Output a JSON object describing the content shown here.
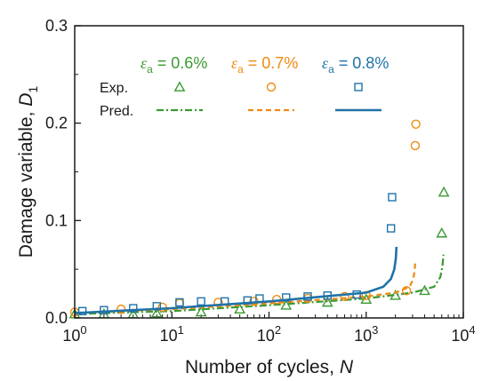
{
  "colors": {
    "green": "#3a9a32",
    "orange": "#ee8a12",
    "blue": "#1f72a8",
    "axis": "#1a1a1a"
  },
  "chart_data": {
    "type": "scatter",
    "x_scale": "log",
    "y_scale": "linear",
    "xlim": [
      1,
      10000
    ],
    "ylim": [
      0,
      0.3
    ],
    "xlabel": {
      "text": "Number of cycles, ",
      "var": "N"
    },
    "ylabel": {
      "text": "Damage variable, ",
      "var": "D",
      "sub": "1"
    },
    "x_ticks": [
      {
        "value": 1,
        "base": "10",
        "exp": "0"
      },
      {
        "value": 10,
        "base": "10",
        "exp": "1"
      },
      {
        "value": 100,
        "base": "10",
        "exp": "2"
      },
      {
        "value": 1000,
        "base": "10",
        "exp": "3"
      },
      {
        "value": 10000,
        "base": "10",
        "exp": "4"
      }
    ],
    "y_ticks": [
      {
        "value": 0,
        "label": "0.0"
      },
      {
        "value": 0.1,
        "label": "0.1"
      },
      {
        "value": 0.2,
        "label": "0.2"
      },
      {
        "value": 0.3,
        "label": "0.3"
      }
    ],
    "legend": {
      "row_labels": {
        "exp": "Exp.",
        "pred": "Pred."
      },
      "header_symbol": "ε",
      "header_sub": "a"
    },
    "series": [
      {
        "name": "ε",
        "name_sub": "a",
        "name_value": " = 0.6%",
        "color_key": "green",
        "marker": "triangle",
        "line_style": "dashdot",
        "exp": [
          {
            "x": 1,
            "y": 0.004
          },
          {
            "x": 2,
            "y": 0.004
          },
          {
            "x": 4,
            "y": 0.004
          },
          {
            "x": 7,
            "y": 0.005
          },
          {
            "x": 20,
            "y": 0.006
          },
          {
            "x": 50,
            "y": 0.009
          },
          {
            "x": 150,
            "y": 0.013
          },
          {
            "x": 400,
            "y": 0.016
          },
          {
            "x": 1000,
            "y": 0.019
          },
          {
            "x": 2000,
            "y": 0.023
          },
          {
            "x": 4000,
            "y": 0.028
          },
          {
            "x": 6000,
            "y": 0.087
          },
          {
            "x": 6300,
            "y": 0.129
          }
        ],
        "pred": [
          {
            "x": 1,
            "y": 0.004
          },
          {
            "x": 10,
            "y": 0.007
          },
          {
            "x": 100,
            "y": 0.013
          },
          {
            "x": 1000,
            "y": 0.02
          },
          {
            "x": 3000,
            "y": 0.026
          },
          {
            "x": 5000,
            "y": 0.032
          },
          {
            "x": 5800,
            "y": 0.042
          },
          {
            "x": 6100,
            "y": 0.053
          },
          {
            "x": 6250,
            "y": 0.065
          }
        ]
      },
      {
        "name": "ε",
        "name_sub": "a",
        "name_value": " = 0.7%",
        "color_key": "orange",
        "marker": "circle",
        "line_style": "dash",
        "exp": [
          {
            "x": 1,
            "y": 0.006
          },
          {
            "x": 3,
            "y": 0.009
          },
          {
            "x": 8,
            "y": 0.011
          },
          {
            "x": 12,
            "y": 0.015
          },
          {
            "x": 30,
            "y": 0.016
          },
          {
            "x": 70,
            "y": 0.017
          },
          {
            "x": 120,
            "y": 0.019
          },
          {
            "x": 250,
            "y": 0.02
          },
          {
            "x": 600,
            "y": 0.022
          },
          {
            "x": 1000,
            "y": 0.023
          },
          {
            "x": 2600,
            "y": 0.028
          },
          {
            "x": 3200,
            "y": 0.177
          },
          {
            "x": 3250,
            "y": 0.199
          }
        ],
        "pred": [
          {
            "x": 1,
            "y": 0.005
          },
          {
            "x": 10,
            "y": 0.009
          },
          {
            "x": 100,
            "y": 0.015
          },
          {
            "x": 1000,
            "y": 0.022
          },
          {
            "x": 2000,
            "y": 0.026
          },
          {
            "x": 2800,
            "y": 0.032
          },
          {
            "x": 3050,
            "y": 0.04
          },
          {
            "x": 3150,
            "y": 0.048
          },
          {
            "x": 3200,
            "y": 0.057
          }
        ]
      },
      {
        "name": "ε",
        "name_sub": "a",
        "name_value": " = 0.8%",
        "color_key": "blue",
        "marker": "square",
        "line_style": "solid",
        "exp": [
          {
            "x": 1.2,
            "y": 0.007
          },
          {
            "x": 2,
            "y": 0.008
          },
          {
            "x": 4,
            "y": 0.01
          },
          {
            "x": 7,
            "y": 0.012
          },
          {
            "x": 12,
            "y": 0.016
          },
          {
            "x": 20,
            "y": 0.017
          },
          {
            "x": 35,
            "y": 0.017
          },
          {
            "x": 60,
            "y": 0.018
          },
          {
            "x": 80,
            "y": 0.02
          },
          {
            "x": 150,
            "y": 0.021
          },
          {
            "x": 250,
            "y": 0.022
          },
          {
            "x": 400,
            "y": 0.023
          },
          {
            "x": 800,
            "y": 0.024
          },
          {
            "x": 1800,
            "y": 0.092
          },
          {
            "x": 1850,
            "y": 0.124
          }
        ],
        "pred": [
          {
            "x": 1,
            "y": 0.005
          },
          {
            "x": 10,
            "y": 0.01
          },
          {
            "x": 100,
            "y": 0.017
          },
          {
            "x": 1000,
            "y": 0.026
          },
          {
            "x": 1500,
            "y": 0.032
          },
          {
            "x": 1800,
            "y": 0.04
          },
          {
            "x": 1950,
            "y": 0.05
          },
          {
            "x": 2020,
            "y": 0.061
          },
          {
            "x": 2050,
            "y": 0.073
          }
        ]
      }
    ]
  }
}
